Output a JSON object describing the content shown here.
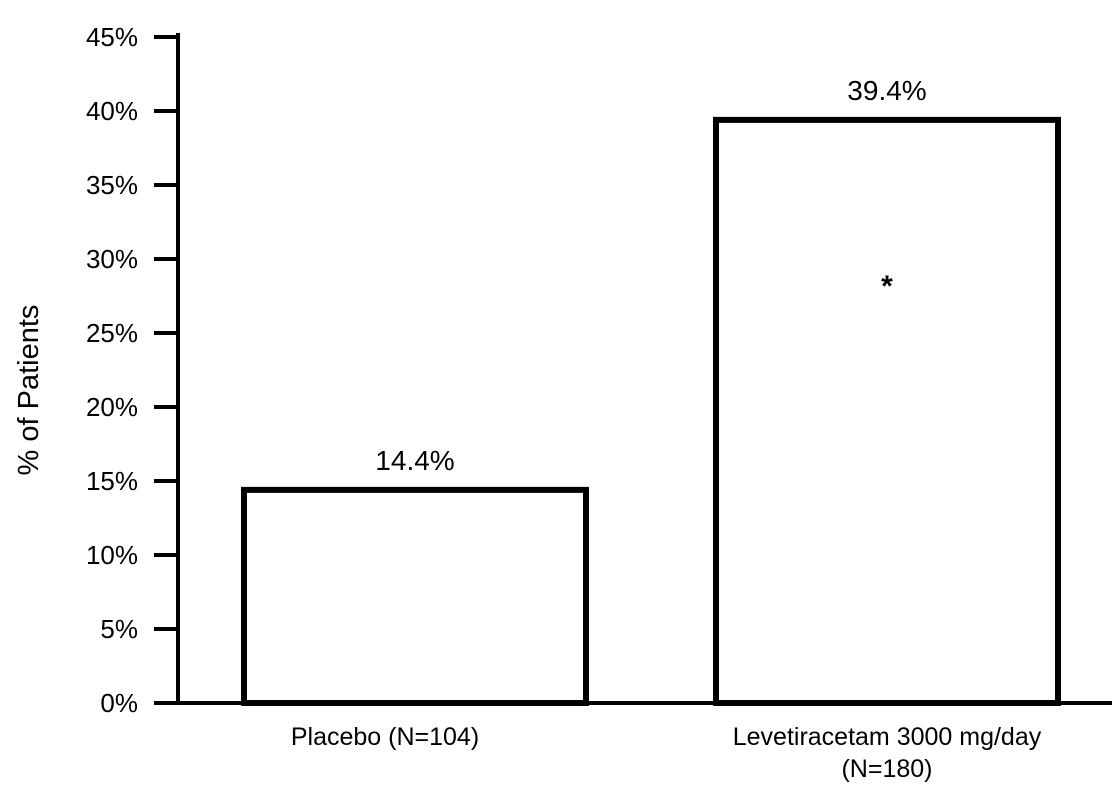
{
  "chart_data": {
    "type": "bar",
    "categories": [
      "Placebo (N=104)",
      "Levetiracetam 3000 mg/day (N=180)"
    ],
    "category_lines": [
      [
        "Placebo (N=104)"
      ],
      [
        "Levetiracetam 3000 mg/day",
        "(N=180)"
      ]
    ],
    "values": [
      14.4,
      39.4
    ],
    "value_labels": [
      "14.4%",
      "39.4%"
    ],
    "bar_annotations": [
      "",
      "*"
    ],
    "ylabel": "% of Patients",
    "xlabel": "",
    "title": "",
    "ylim": [
      0,
      45
    ],
    "yticks": [
      0,
      5,
      10,
      15,
      20,
      25,
      30,
      35,
      40,
      45
    ],
    "ytick_labels": [
      "0%",
      "5%",
      "10%",
      "15%",
      "20%",
      "25%",
      "30%",
      "35%",
      "40%",
      "45%"
    ],
    "grid": false,
    "legend": "none",
    "bar_fill": "#ffffff",
    "bar_stroke": "#000000"
  }
}
